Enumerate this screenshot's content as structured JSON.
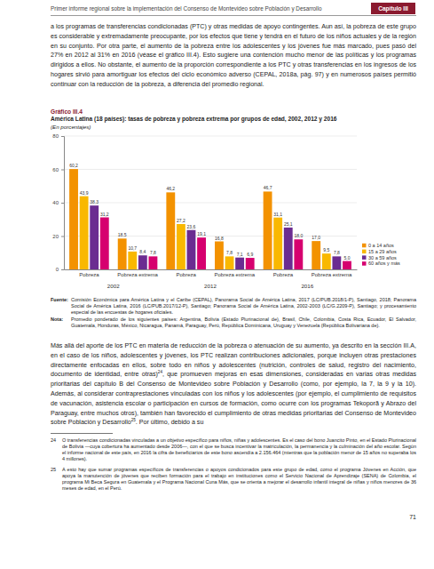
{
  "header": {
    "title": "Primer informe regional sobre la implementación del Consenso de Montevideo sobre Población y Desarrollo",
    "chapter": "Capítulo III"
  },
  "paragraphs": [
    [
      {
        "text": "a los programas de transferencias condicionadas (PTC) y otras medidas de apoyo contingentes. Aun así, la pobreza de este grupo es considerable y extremadamente preocupante, por los efectos que tiene y tendrá en el futuro de los niños actuales y de la región en su conjunto. Por otra parte, el aumento de la pobreza entre los adolescentes y los jóvenes fue más marcado, pues pasó del 27% en 2012 al 31% en 2016 (véase el gráfico III.4). Esto sugiere una contención mucho menor de las políticas y los programas dirigidos a ellos. No obstante, el aumento de la proporción correspondiente a los PTC y otras transferencias en los ingresos de los hogares sirvió para amortiguar los efectos del ciclo económico adverso (CEPAL, 2018a, pág. 97) y en numerosos países permitió continuar con la reducción de la pobreza, a diferencia del promedio regional."
      }
    ],
    [
      {
        "text": "Más allá del aporte de los PTC en materia de reducción de la pobreza o atenuación de su aumento, ya descrito en la sección III.A, en el caso de los niños, adolescentes y jóvenes, los PTC realizan contribuciones adicionales, porque incluyen otras prestaciones directamente enfocadas en ellos, sobre todo en niños y adolescentes (nutrición, controles de salud, registro del nacimiento, documento de identidad, entre otras)"
      },
      {
        "sup": "24"
      },
      {
        "text": ", que promueven mejoras en esas dimensiones, consideradas en varias otras medidas prioritarias del capítulo B del Consenso de Montevideo sobre Población y Desarrollo (como, por ejemplo, la 7, la 9 y la 10). Además, al considerar contraprestaciones vinculadas con los niños y los adolescentes (por ejemplo, el cumplimiento de requisitos de vacunación, asistencia escolar o participación en cursos de formación, como ocurre con los programas Tekoporã y Abrazo del Paraguay, entre muchos otros), también han favorecido el cumplimiento de otras medidas prioritarias del Consenso de Montevideo sobre Población y Desarrollo"
      },
      {
        "sup": "25"
      },
      {
        "text": ". Por último, debido a su"
      }
    ]
  ],
  "figure": {
    "label": "Gráfico III.4",
    "title": "América Latina (18 países): tasas de pobreza y pobreza extrema por grupos de edad, 2002, 2012 y 2016",
    "subtitle": "(En porcentajes)"
  },
  "chart_data": {
    "type": "bar",
    "categories": [
      "Pobreza",
      "Pobreza extrema",
      "Pobreza",
      "Pobreza extrema",
      "Pobreza",
      "Pobreza extrema"
    ],
    "groups": [
      "2002",
      "2012",
      "2016"
    ],
    "series": [
      {
        "name": "0 a 14 años",
        "color": "#f39200",
        "values": [
          60.2,
          18.5,
          46.2,
          16.8,
          46.7,
          17.0
        ],
        "value_labels": [
          "60,2",
          "18,5",
          "46,2",
          "16,8",
          "46,7",
          "17,0"
        ]
      },
      {
        "name": "15 a 29 años",
        "color": "#f9b800",
        "values": [
          43.9,
          10.7,
          27.2,
          7.8,
          31.1,
          9.5
        ],
        "value_labels": [
          "43,9",
          "10,7",
          "27,2",
          "7,8",
          "31,1",
          "9,5"
        ]
      },
      {
        "name": "30 a 59 años",
        "color": "#6b2c91",
        "values": [
          38.3,
          8.4,
          23.6,
          7.1,
          25.1,
          7.8
        ],
        "value_labels": [
          "38,3",
          "8,4",
          "23,6",
          "7,1",
          "25,1",
          "7,8"
        ]
      },
      {
        "name": "60 años y más",
        "color": "#d6006f",
        "values": [
          31.2,
          7.8,
          19.1,
          6.9,
          18.0,
          5.0
        ],
        "value_labels": [
          "31,2",
          "7,8",
          "19,1",
          "6,9",
          "18,0",
          "5,0"
        ]
      }
    ],
    "ylim": [
      0,
      80
    ],
    "yticks": [
      0,
      20,
      40,
      60,
      80
    ],
    "grid": true,
    "legend": "right",
    "data_labels": true
  },
  "source": {
    "label": "Fuente:",
    "text": "Comisión Económica para América Latina y el Caribe (CEPAL), Panorama Social de América Latina, 2017 (LC/PUB.2018/1-P), Santiago, 2018; Panorama Social de América Latina, 2016 (LC/PUB.2017/12-P), Santiago; Panorama Social de América Latina, 2002-2003 (LC/G.2209-P), Santiago; y procesamiento especial de las encuestas de hogares oficiales."
  },
  "note": {
    "label": "Nota:",
    "text": "Promedio ponderado de los siguientes países: Argentina, Bolivia (Estado Plurinacional de), Brasil, Chile, Colombia, Costa Rica, Ecuador, El Salvador, Guatemala, Honduras, México, Nicaragua, Panamá, Paraguay, Perú, República Dominicana, Uruguay y Venezuela (República Bolivariana de)."
  },
  "footnotes": [
    {
      "number": "24",
      "text": "O transferencias condicionadas vinculadas a un objetivo específico para niños, niñas y adolescentes. Es el caso del bono Juancito Pinto, en el Estado Plurinacional de Bolivia —cuya cobertura ha aumentado desde 2006—, con el que se busca incentivar la matriculación, la permanencia y la culminación del año escolar. Según el informe nacional de este país, en 2016 la cifra de beneficiarios de este bono ascendía a 2.156.464 (mientras que la población menor de 15 años no superaba los 4 millones)."
    },
    {
      "number": "25",
      "text": "A esto hay que sumar programas específicos de transferencias o apoyos condicionados para este grupo de edad, como el programa Jóvenes en Acción, que apoya la manutención de jóvenes que reciben formación para el trabajo en instituciones como el Servicio Nacional de Aprendizaje (SENA) de Colombia, el programa Mi Beca Segura en Guatemala y el Programa Nacional Cuna Más, que se orienta a mejorar el desarrollo infantil integral de niñas y niños menores de 36 meses de edad, en el Perú."
    }
  ],
  "page_number": "71"
}
